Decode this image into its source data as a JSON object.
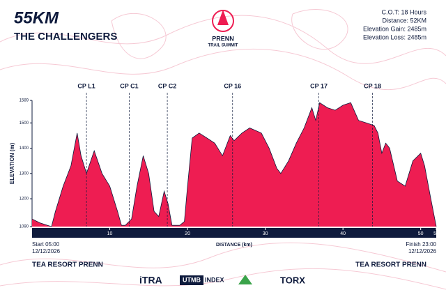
{
  "header": {
    "title": "55KM",
    "subtitle": "THE CHALLENGERS",
    "logo": [
      "PRENN",
      "TRAIL SUMMIT"
    ]
  },
  "info": [
    "C.O.T: 18 Hours",
    "Distance: 52KM",
    "Elevation Gain: 2485m",
    "Elevation Loss: 2485m"
  ],
  "chart_data": {
    "type": "area",
    "color": "#ee1d52",
    "x_label": "DISTANCE (km)",
    "y_label": "ELEVATION (m)",
    "x": [
      0,
      1,
      2,
      2.5,
      3,
      4,
      5,
      5.8,
      6.3,
      7,
      8,
      9,
      10,
      11,
      11.5,
      12,
      12.8,
      13.5,
      14.3,
      15,
      15.7,
      16.3,
      17,
      17.5,
      18,
      19,
      19.6,
      20,
      20.6,
      21.5,
      22.5,
      23.5,
      24.5,
      25.5,
      26,
      27,
      28,
      29.5,
      30.5,
      31.5,
      32,
      33,
      34,
      35,
      36,
      36.5,
      37,
      38,
      39,
      40,
      41,
      42,
      43,
      44,
      44.5,
      45,
      45.5,
      46,
      47,
      48,
      49,
      50,
      50.5,
      51.3,
      52
    ],
    "values": [
      1120,
      1105,
      1095,
      1090,
      1150,
      1250,
      1330,
      1460,
      1370,
      1300,
      1390,
      1300,
      1250,
      1150,
      1095,
      1095,
      1120,
      1250,
      1370,
      1300,
      1150,
      1130,
      1230,
      1180,
      1095,
      1095,
      1110,
      1250,
      1440,
      1460,
      1440,
      1420,
      1370,
      1450,
      1430,
      1460,
      1480,
      1460,
      1400,
      1320,
      1300,
      1350,
      1420,
      1480,
      1560,
      1510,
      1580,
      1560,
      1550,
      1570,
      1580,
      1510,
      1500,
      1490,
      1460,
      1380,
      1420,
      1400,
      1270,
      1250,
      1350,
      1380,
      1330,
      1200,
      1090
    ],
    "xlim": [
      0,
      52
    ],
    "ylim": [
      1090,
      1589
    ],
    "xticks": [
      10,
      20,
      30,
      40,
      50,
      52
    ],
    "yticks": [
      1090,
      1200,
      1300,
      1400,
      1500,
      1589
    ],
    "checkpoints": [
      {
        "name": "CP L1",
        "x": 7
      },
      {
        "name": "CP C1",
        "x": 12.5
      },
      {
        "name": "CP C2",
        "x": 17.4
      },
      {
        "name": "CP 16",
        "x": 25.8
      },
      {
        "name": "CP 17",
        "x": 36.9
      },
      {
        "name": "CP 18",
        "x": 43.8
      }
    ]
  },
  "footer": {
    "start": [
      "Start 05:00",
      "12/12/2026"
    ],
    "finish": [
      "Finish 23:00",
      "12/12/2026"
    ],
    "start_place": "TEA RESORT PRENN",
    "finish_place": "TEA RESORT PRENN",
    "sponsors": [
      "iTRA",
      "UTMB",
      "INDEX",
      "TORX"
    ]
  }
}
